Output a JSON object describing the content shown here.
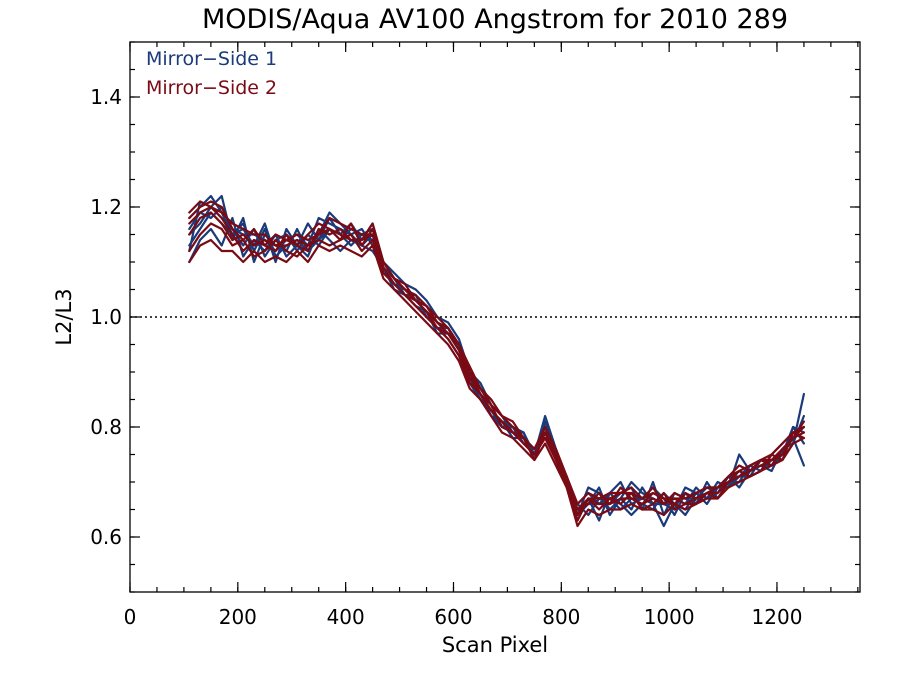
{
  "chart_data": {
    "type": "line",
    "title": "MODIS/Aqua AV100 Angstrom for 2010 289",
    "xlabel": "Scan Pixel",
    "ylabel": "L2/L3",
    "xlim": [
      0,
      1354
    ],
    "ylim": [
      0.5,
      1.5
    ],
    "x_ticks": [
      0,
      200,
      400,
      600,
      800,
      1000,
      1200
    ],
    "x_tick_labels": [
      "0",
      "200",
      "400",
      "600",
      "800",
      "1000",
      "1200"
    ],
    "x_minor_step": 50,
    "y_ticks": [
      0.6,
      0.8,
      1.0,
      1.2,
      1.4
    ],
    "y_tick_labels": [
      "0.6",
      "0.8",
      "1.0",
      "1.2",
      "1.4"
    ],
    "y_minor_step": 0.05,
    "reference_line": {
      "y": 1.0,
      "style": "dotted"
    },
    "grid": false,
    "legend_position": "top-left",
    "legend": [
      {
        "label": "Mirror−Side 1",
        "color": "#1a3a7a"
      },
      {
        "label": "Mirror−Side 2",
        "color": "#7a0a14"
      }
    ],
    "x": [
      110,
      130,
      150,
      170,
      190,
      210,
      230,
      250,
      270,
      290,
      310,
      330,
      350,
      370,
      390,
      410,
      430,
      450,
      470,
      490,
      510,
      530,
      550,
      570,
      590,
      610,
      630,
      650,
      670,
      690,
      710,
      730,
      750,
      770,
      790,
      810,
      830,
      850,
      870,
      890,
      910,
      930,
      950,
      970,
      990,
      1010,
      1030,
      1050,
      1070,
      1090,
      1110,
      1130,
      1150,
      1170,
      1190,
      1210,
      1230,
      1250
    ],
    "series": [
      {
        "color": "#1a3a7a",
        "values": [
          1.12,
          1.21,
          1.2,
          1.22,
          1.14,
          1.18,
          1.1,
          1.15,
          1.13,
          1.12,
          1.16,
          1.12,
          1.15,
          1.19,
          1.17,
          1.15,
          1.13,
          1.12,
          1.09,
          1.06,
          1.05,
          1.03,
          1.01,
          0.99,
          0.97,
          0.94,
          0.89,
          0.85,
          0.83,
          0.8,
          0.79,
          0.78,
          0.75,
          0.82,
          0.76,
          0.7,
          0.64,
          0.66,
          0.69,
          0.64,
          0.67,
          0.65,
          0.69,
          0.66,
          0.62,
          0.66,
          0.65,
          0.68,
          0.66,
          0.69,
          0.71,
          0.69,
          0.72,
          0.73,
          0.72,
          0.76,
          0.78,
          0.73
        ]
      },
      {
        "color": "#1a3a7a",
        "values": [
          1.15,
          1.17,
          1.2,
          1.18,
          1.16,
          1.13,
          1.16,
          1.11,
          1.14,
          1.15,
          1.12,
          1.15,
          1.13,
          1.16,
          1.14,
          1.16,
          1.15,
          1.14,
          1.1,
          1.07,
          1.04,
          1.04,
          1.0,
          0.98,
          0.98,
          0.94,
          0.9,
          0.86,
          0.82,
          0.81,
          0.8,
          0.77,
          0.76,
          0.79,
          0.76,
          0.71,
          0.66,
          0.68,
          0.66,
          0.68,
          0.7,
          0.66,
          0.67,
          0.69,
          0.67,
          0.64,
          0.68,
          0.66,
          0.68,
          0.69,
          0.69,
          0.71,
          0.71,
          0.74,
          0.73,
          0.75,
          0.8,
          0.79
        ]
      },
      {
        "color": "#1a3a7a",
        "values": [
          1.18,
          1.2,
          1.22,
          1.19,
          1.15,
          1.17,
          1.12,
          1.16,
          1.1,
          1.16,
          1.13,
          1.17,
          1.14,
          1.18,
          1.15,
          1.17,
          1.14,
          1.17,
          1.1,
          1.08,
          1.06,
          1.05,
          1.03,
          1.0,
          0.99,
          0.96,
          0.9,
          0.88,
          0.84,
          0.8,
          0.8,
          0.79,
          0.75,
          0.8,
          0.74,
          0.7,
          0.66,
          0.64,
          0.67,
          0.66,
          0.68,
          0.69,
          0.65,
          0.7,
          0.64,
          0.68,
          0.67,
          0.66,
          0.7,
          0.67,
          0.7,
          0.72,
          0.71,
          0.72,
          0.74,
          0.74,
          0.77,
          0.82
        ]
      },
      {
        "color": "#1a3a7a",
        "values": [
          1.1,
          1.14,
          1.16,
          1.13,
          1.18,
          1.11,
          1.14,
          1.12,
          1.15,
          1.11,
          1.13,
          1.11,
          1.16,
          1.14,
          1.12,
          1.14,
          1.13,
          1.15,
          1.08,
          1.06,
          1.04,
          1.02,
          1.0,
          0.98,
          0.96,
          0.93,
          0.88,
          0.86,
          0.83,
          0.81,
          0.78,
          0.78,
          0.76,
          0.78,
          0.75,
          0.71,
          0.63,
          0.67,
          0.63,
          0.68,
          0.66,
          0.64,
          0.66,
          0.65,
          0.68,
          0.66,
          0.64,
          0.67,
          0.69,
          0.68,
          0.7,
          0.7,
          0.73,
          0.72,
          0.75,
          0.77,
          0.79,
          0.8
        ]
      },
      {
        "color": "#1a3a7a",
        "values": [
          1.16,
          1.19,
          1.18,
          1.2,
          1.16,
          1.15,
          1.15,
          1.14,
          1.12,
          1.14,
          1.15,
          1.13,
          1.18,
          1.17,
          1.16,
          1.15,
          1.16,
          1.13,
          1.09,
          1.07,
          1.05,
          1.03,
          1.02,
          0.99,
          0.98,
          0.95,
          0.89,
          0.87,
          0.84,
          0.82,
          0.79,
          0.79,
          0.74,
          0.81,
          0.75,
          0.71,
          0.64,
          0.69,
          0.68,
          0.65,
          0.67,
          0.7,
          0.68,
          0.67,
          0.66,
          0.65,
          0.69,
          0.68,
          0.67,
          0.7,
          0.69,
          0.75,
          0.72,
          0.73,
          0.73,
          0.76,
          0.77,
          0.86
        ]
      },
      {
        "color": "#1a3a7a",
        "values": [
          1.13,
          1.16,
          1.19,
          1.17,
          1.15,
          1.16,
          1.13,
          1.17,
          1.11,
          1.13,
          1.14,
          1.12,
          1.14,
          1.16,
          1.15,
          1.13,
          1.15,
          1.16,
          1.09,
          1.05,
          1.04,
          1.02,
          1.01,
          0.97,
          0.97,
          0.95,
          0.88,
          0.85,
          0.82,
          0.8,
          0.8,
          0.77,
          0.75,
          0.79,
          0.76,
          0.7,
          0.65,
          0.66,
          0.66,
          0.67,
          0.65,
          0.67,
          0.67,
          0.66,
          0.66,
          0.67,
          0.66,
          0.69,
          0.67,
          0.68,
          0.71,
          0.71,
          0.73,
          0.74,
          0.74,
          0.75,
          0.8,
          0.77
        ]
      },
      {
        "color": "#7a0a14",
        "values": [
          1.17,
          1.19,
          1.2,
          1.18,
          1.15,
          1.12,
          1.14,
          1.13,
          1.12,
          1.15,
          1.13,
          1.12,
          1.16,
          1.15,
          1.16,
          1.14,
          1.14,
          1.17,
          1.1,
          1.07,
          1.05,
          1.03,
          1.01,
          0.99,
          0.97,
          0.95,
          0.9,
          0.86,
          0.83,
          0.81,
          0.79,
          0.77,
          0.75,
          0.78,
          0.74,
          0.7,
          0.65,
          0.66,
          0.68,
          0.66,
          0.69,
          0.67,
          0.66,
          0.68,
          0.67,
          0.66,
          0.68,
          0.67,
          0.68,
          0.69,
          0.7,
          0.71,
          0.72,
          0.74,
          0.73,
          0.76,
          0.78,
          0.8
        ]
      },
      {
        "color": "#7a0a14",
        "values": [
          1.12,
          1.15,
          1.17,
          1.16,
          1.13,
          1.14,
          1.11,
          1.12,
          1.14,
          1.12,
          1.11,
          1.13,
          1.14,
          1.13,
          1.14,
          1.15,
          1.12,
          1.14,
          1.08,
          1.06,
          1.04,
          1.02,
          1.0,
          0.98,
          0.96,
          0.93,
          0.88,
          0.86,
          0.84,
          0.8,
          0.79,
          0.78,
          0.74,
          0.79,
          0.74,
          0.69,
          0.63,
          0.67,
          0.65,
          0.67,
          0.66,
          0.68,
          0.65,
          0.66,
          0.68,
          0.65,
          0.66,
          0.66,
          0.68,
          0.67,
          0.7,
          0.72,
          0.71,
          0.72,
          0.75,
          0.74,
          0.79,
          0.78
        ]
      },
      {
        "color": "#7a0a14",
        "values": [
          1.19,
          1.21,
          1.2,
          1.19,
          1.17,
          1.16,
          1.15,
          1.15,
          1.13,
          1.14,
          1.15,
          1.14,
          1.15,
          1.18,
          1.17,
          1.16,
          1.15,
          1.15,
          1.1,
          1.07,
          1.05,
          1.04,
          1.02,
          1.0,
          0.98,
          0.95,
          0.9,
          0.87,
          0.84,
          0.82,
          0.8,
          0.78,
          0.76,
          0.79,
          0.75,
          0.71,
          0.66,
          0.68,
          0.67,
          0.67,
          0.68,
          0.69,
          0.67,
          0.69,
          0.66,
          0.68,
          0.67,
          0.68,
          0.69,
          0.69,
          0.71,
          0.73,
          0.72,
          0.74,
          0.74,
          0.76,
          0.78,
          0.81
        ]
      },
      {
        "color": "#7a0a14",
        "values": [
          1.1,
          1.13,
          1.14,
          1.12,
          1.12,
          1.1,
          1.12,
          1.1,
          1.11,
          1.1,
          1.12,
          1.1,
          1.13,
          1.12,
          1.13,
          1.12,
          1.11,
          1.13,
          1.07,
          1.05,
          1.03,
          1.01,
          0.99,
          0.97,
          0.95,
          0.92,
          0.87,
          0.85,
          0.82,
          0.79,
          0.78,
          0.76,
          0.74,
          0.77,
          0.73,
          0.69,
          0.62,
          0.65,
          0.64,
          0.65,
          0.65,
          0.66,
          0.65,
          0.65,
          0.64,
          0.66,
          0.65,
          0.66,
          0.67,
          0.67,
          0.69,
          0.7,
          0.71,
          0.72,
          0.73,
          0.74,
          0.77,
          0.78
        ]
      },
      {
        "color": "#7a0a14",
        "values": [
          1.15,
          1.18,
          1.19,
          1.17,
          1.14,
          1.15,
          1.13,
          1.14,
          1.13,
          1.13,
          1.14,
          1.13,
          1.15,
          1.16,
          1.15,
          1.14,
          1.14,
          1.15,
          1.09,
          1.06,
          1.04,
          1.03,
          1.01,
          0.98,
          0.97,
          0.94,
          0.89,
          0.86,
          0.83,
          0.81,
          0.79,
          0.77,
          0.75,
          0.78,
          0.75,
          0.7,
          0.64,
          0.67,
          0.66,
          0.66,
          0.67,
          0.67,
          0.66,
          0.67,
          0.66,
          0.67,
          0.66,
          0.67,
          0.68,
          0.68,
          0.7,
          0.71,
          0.72,
          0.73,
          0.74,
          0.75,
          0.78,
          0.79
        ]
      },
      {
        "color": "#7a0a14",
        "values": [
          1.18,
          1.2,
          1.21,
          1.2,
          1.16,
          1.14,
          1.16,
          1.13,
          1.15,
          1.14,
          1.13,
          1.15,
          1.17,
          1.16,
          1.14,
          1.17,
          1.13,
          1.16,
          1.1,
          1.07,
          1.06,
          1.03,
          1.02,
          0.99,
          0.98,
          0.95,
          0.91,
          0.87,
          0.85,
          0.82,
          0.81,
          0.78,
          0.76,
          0.8,
          0.76,
          0.71,
          0.65,
          0.67,
          0.67,
          0.68,
          0.68,
          0.68,
          0.67,
          0.68,
          0.67,
          0.67,
          0.67,
          0.68,
          0.69,
          0.69,
          0.71,
          0.72,
          0.73,
          0.74,
          0.75,
          0.77,
          0.79,
          0.8
        ]
      }
    ]
  }
}
